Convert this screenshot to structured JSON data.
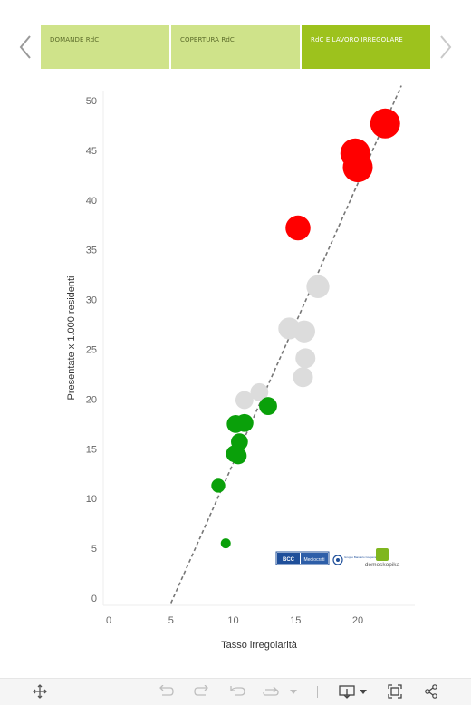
{
  "tabs": [
    {
      "label": "DOMANDE RdC",
      "active": false
    },
    {
      "label": "COPERTURA RdC",
      "active": false
    },
    {
      "label": "RdC E LAVORO IRREGOLARE",
      "active": true
    }
  ],
  "icons": {
    "prev": "chevron-left-icon",
    "next": "chevron-right-icon",
    "toolbar": [
      "move-icon",
      "undo-icon",
      "redo-icon",
      "revert-icon",
      "refresh-icon",
      "download-icon",
      "fullscreen-icon",
      "share-icon"
    ]
  },
  "logos": {
    "bcc_text": "BCC",
    "mediocrati_text": "Mediocrati",
    "gruppo_text": "Gruppo Bancario Cooperativo Iccrea",
    "demoskopika_text": "demoskopika"
  },
  "colors": {
    "red": "#ff0000",
    "grey": "#dcdcdc",
    "green": "#0aa00a",
    "trend": "#777777",
    "tab_active": "#9dc21d",
    "tab_inactive": "#cfe38a"
  },
  "chart_data": {
    "type": "scatter",
    "xlabel": "Tasso irregolarità",
    "ylabel": "Presentate x 1.000 residenti",
    "xlim": [
      0,
      24
    ],
    "ylim": [
      0,
      52
    ],
    "xticks": [
      0,
      5,
      10,
      15,
      20
    ],
    "yticks": [
      0,
      5,
      10,
      15,
      20,
      25,
      30,
      35,
      40,
      45,
      50
    ],
    "grid": false,
    "trend_line": {
      "style": "dashed",
      "from": [
        5,
        -0.5
      ],
      "to": [
        23.5,
        51.5
      ]
    },
    "series": [
      {
        "group": "red",
        "points": [
          {
            "x": 22.2,
            "y": 47.7,
            "size": 3
          },
          {
            "x": 19.8,
            "y": 44.7,
            "size": 3
          },
          {
            "x": 20.0,
            "y": 43.3,
            "size": 3
          },
          {
            "x": 15.2,
            "y": 37.2,
            "size": 2.5
          }
        ]
      },
      {
        "group": "grey",
        "points": [
          {
            "x": 16.8,
            "y": 31.3,
            "size": 2.3
          },
          {
            "x": 14.5,
            "y": 27.1,
            "size": 2.2
          },
          {
            "x": 15.7,
            "y": 26.8,
            "size": 2.2
          },
          {
            "x": 15.8,
            "y": 24.1,
            "size": 2.0
          },
          {
            "x": 15.6,
            "y": 22.2,
            "size": 2.0
          },
          {
            "x": 12.1,
            "y": 20.7,
            "size": 1.8
          },
          {
            "x": 10.9,
            "y": 19.9,
            "size": 1.8
          }
        ]
      },
      {
        "group": "green",
        "points": [
          {
            "x": 12.8,
            "y": 19.3,
            "size": 1.8
          },
          {
            "x": 10.2,
            "y": 17.5,
            "size": 1.8
          },
          {
            "x": 10.9,
            "y": 17.6,
            "size": 1.8
          },
          {
            "x": 10.5,
            "y": 15.7,
            "size": 1.7
          },
          {
            "x": 10.1,
            "y": 14.5,
            "size": 1.7
          },
          {
            "x": 10.4,
            "y": 14.3,
            "size": 1.7
          },
          {
            "x": 8.8,
            "y": 11.3,
            "size": 1.4
          },
          {
            "x": 9.4,
            "y": 5.5,
            "size": 1.0
          }
        ]
      }
    ]
  }
}
